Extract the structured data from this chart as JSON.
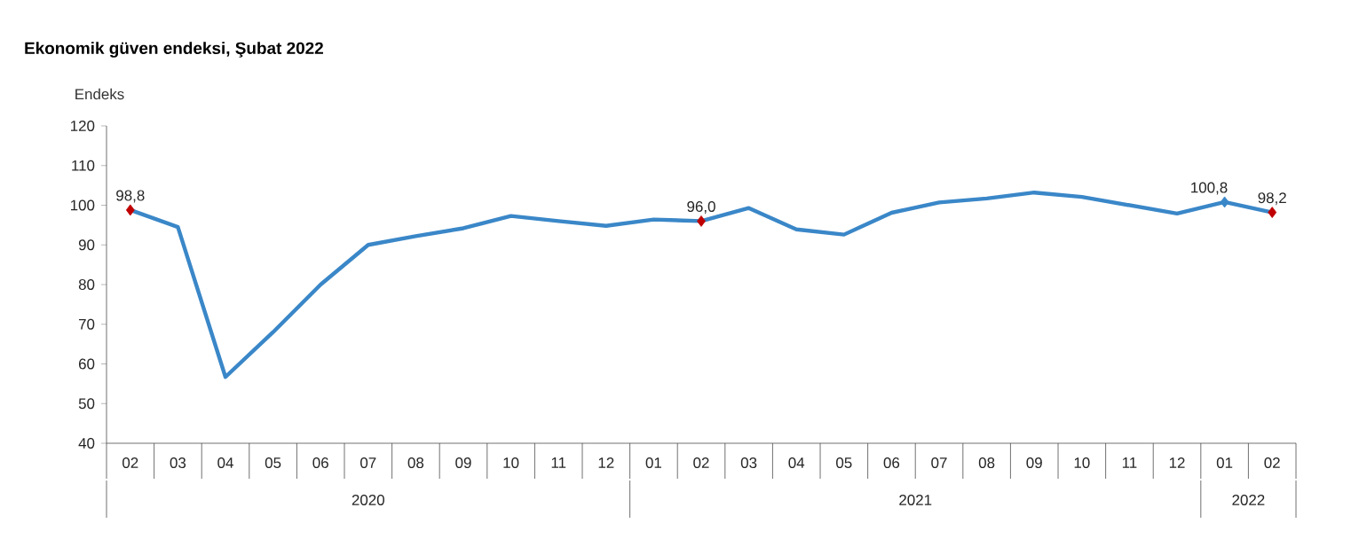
{
  "chart_data": {
    "type": "line",
    "title": "Ekonomik güven endeksi, Şubat 2022",
    "ylabel": "Endeks",
    "categories": [
      "02",
      "03",
      "04",
      "05",
      "06",
      "07",
      "08",
      "09",
      "10",
      "11",
      "12",
      "01",
      "02",
      "03",
      "04",
      "05",
      "06",
      "07",
      "08",
      "09",
      "10",
      "11",
      "12",
      "01",
      "02"
    ],
    "annotations": [
      "2020",
      "2021",
      "2022"
    ],
    "series": [
      {
        "color": "#3a87c8",
        "values": [
          98.8,
          94.5,
          56.7,
          68,
          80,
          90,
          92.2,
          94.2,
          97.3,
          96,
          94.8,
          96.4,
          96.0,
          99.3,
          93.9,
          92.6,
          98.1,
          100.7,
          101.7,
          103.2,
          102.1,
          100.0,
          97.9,
          100.8,
          98.2
        ],
        "value_labels": [
          "98,8",
          null,
          null,
          null,
          null,
          null,
          null,
          null,
          null,
          null,
          null,
          null,
          "96,0",
          null,
          null,
          null,
          null,
          null,
          null,
          null,
          null,
          null,
          null,
          "100,8",
          "98,2"
        ],
        "colors": [
          "#c00000",
          null,
          null,
          null,
          null,
          null,
          null,
          null,
          null,
          null,
          null,
          null,
          "#c00000",
          null,
          null,
          null,
          null,
          null,
          null,
          null,
          null,
          null,
          null,
          "#3a87c8",
          "#c00000"
        ]
      }
    ],
    "ylim": [
      40,
      120
    ],
    "yticks": [
      40,
      50,
      60,
      70,
      80,
      90,
      100,
      110,
      120
    ]
  }
}
